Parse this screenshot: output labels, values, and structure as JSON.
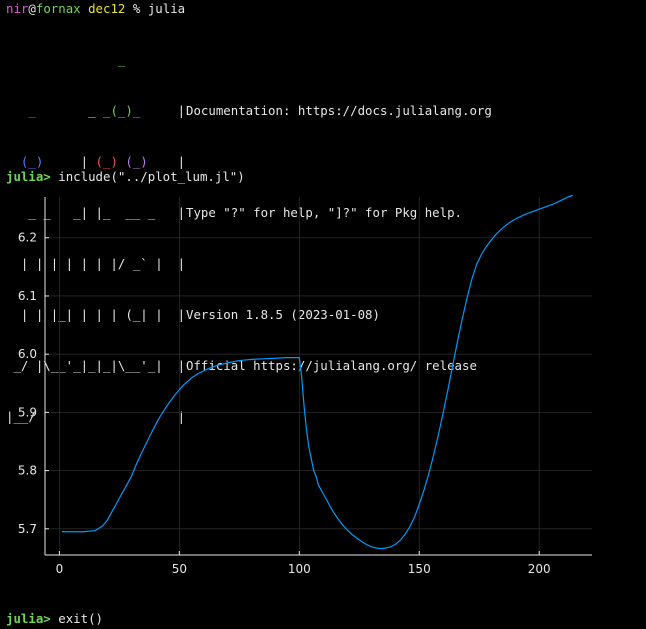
{
  "terminal": {
    "shell_prompt": {
      "user": "nir",
      "at": "@",
      "host": "fornax",
      "dir": "dec12",
      "symbol": "%",
      "command": "julia"
    },
    "banner": {
      "art": [
        "               _",
        "   _       _ _(_)_     |",
        "  (_)     | (_) (_)    |",
        "   _ _   _| |_  __ _   |",
        "  | | | | | | |/ _` |  |",
        "  | | |_| | | | (_| |  |",
        " _/ |\\__'_|_|_|\\__'_|  |",
        "|__/                   |"
      ],
      "info": [
        "",
        "Documentation: https://docs.julialang.org",
        "",
        "Type \"?\" for help, \"]?\" for Pkg help.",
        "",
        "Version 1.8.5 (2023-01-08)",
        "Official https://julialang.org/ release",
        ""
      ]
    },
    "repl_prompt": "julia>",
    "command1": "include(\"../plot_lum.jl\")",
    "command2": "exit()"
  },
  "colors": {
    "prompt_green": "#6fd655",
    "user_magenta": "#e05ad6",
    "dir_yellow": "#e8e23c",
    "series_blue": "#009af9",
    "logo_blue": "#4f7dff",
    "logo_red": "#f0504c",
    "logo_purple": "#b87cf0"
  },
  "chart_data": {
    "type": "line",
    "title": "",
    "xlabel": "",
    "ylabel": "",
    "xlim": [
      -6,
      222
    ],
    "ylim": [
      5.655,
      6.27
    ],
    "xticks": [
      0,
      50,
      100,
      150,
      200
    ],
    "yticks": [
      5.7,
      5.8,
      5.9,
      6.0,
      6.1,
      6.2
    ],
    "ytick_labels": [
      "5.7",
      "5.8",
      "5.9",
      "6.0",
      "6.1",
      "6.2"
    ],
    "xtick_labels": [
      "0",
      "50",
      "100",
      "150",
      "200"
    ],
    "grid": true,
    "legend": "none",
    "series": [
      {
        "x": [
          1,
          5,
          10,
          15,
          18,
          20,
          22,
          24,
          26,
          28,
          30,
          32,
          34,
          36,
          38,
          40,
          42,
          44,
          46,
          48,
          50,
          52,
          55,
          58,
          62,
          66,
          70,
          75,
          80,
          85,
          90,
          95,
          100,
          101,
          102,
          103,
          104,
          105,
          106,
          107,
          108,
          110,
          112,
          114,
          116,
          118,
          120,
          122,
          124,
          126,
          128,
          130,
          132,
          134,
          136,
          138,
          140,
          142,
          144,
          146,
          148,
          150,
          152,
          154,
          156,
          158,
          160,
          162,
          164,
          166,
          168,
          170,
          172,
          174,
          176,
          178,
          180,
          182,
          184,
          186,
          188,
          190,
          192,
          194,
          196,
          198,
          200,
          202,
          204,
          206,
          208,
          210,
          212,
          214
        ],
        "y": [
          5.695,
          5.695,
          5.695,
          5.697,
          5.705,
          5.715,
          5.73,
          5.745,
          5.76,
          5.775,
          5.79,
          5.81,
          5.828,
          5.845,
          5.862,
          5.878,
          5.893,
          5.906,
          5.918,
          5.929,
          5.939,
          5.948,
          5.959,
          5.967,
          5.975,
          5.981,
          5.985,
          5.989,
          5.991,
          5.992,
          5.993,
          5.994,
          5.994,
          5.96,
          5.91,
          5.87,
          5.84,
          5.82,
          5.8,
          5.79,
          5.775,
          5.76,
          5.745,
          5.73,
          5.718,
          5.707,
          5.698,
          5.69,
          5.684,
          5.678,
          5.673,
          5.669,
          5.667,
          5.666,
          5.667,
          5.669,
          5.673,
          5.68,
          5.69,
          5.703,
          5.72,
          5.742,
          5.767,
          5.795,
          5.827,
          5.862,
          5.9,
          5.94,
          5.982,
          6.023,
          6.062,
          6.098,
          6.13,
          6.155,
          6.172,
          6.185,
          6.196,
          6.206,
          6.214,
          6.221,
          6.227,
          6.232,
          6.236,
          6.24,
          6.243,
          6.246,
          6.249,
          6.252,
          6.255,
          6.258,
          6.262,
          6.266,
          6.27,
          6.273
        ]
      }
    ]
  }
}
